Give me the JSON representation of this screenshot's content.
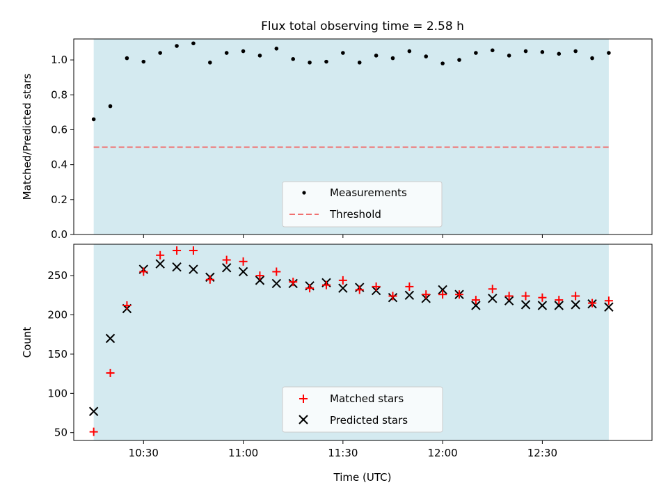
{
  "figure": {
    "title": "Flux total observing time = 2.58 h"
  },
  "chart_data": [
    {
      "type": "scatter",
      "ylabel": "Matched/Predicted stars",
      "ylim": [
        0,
        1.12
      ],
      "yticks": [
        0.0,
        0.2,
        0.4,
        0.6,
        0.8,
        1.0
      ],
      "ytick_labels": [
        "0.0",
        "0.2",
        "0.4",
        "0.6",
        "0.8",
        "1.0"
      ],
      "xlim": [
        "10:09",
        "13:03"
      ],
      "shaded_span": [
        "10:15",
        "12:50"
      ],
      "shade_color": "#d4eaf0",
      "grid": false,
      "legend_position": "lower center",
      "threshold": {
        "name": "Threshold",
        "value": 0.5,
        "color": "#f07070",
        "style": "dashed"
      },
      "series": [
        {
          "name": "Measurements",
          "marker": "dot",
          "color": "#000000",
          "x": [
            "10:15",
            "10:20",
            "10:25",
            "10:30",
            "10:35",
            "10:40",
            "10:45",
            "10:50",
            "10:55",
            "11:00",
            "11:05",
            "11:10",
            "11:15",
            "11:20",
            "11:25",
            "11:30",
            "11:35",
            "11:40",
            "11:45",
            "11:50",
            "11:55",
            "12:00",
            "12:05",
            "12:10",
            "12:15",
            "12:20",
            "12:25",
            "12:30",
            "12:35",
            "12:40",
            "12:45",
            "12:50"
          ],
          "y": [
            0.66,
            0.735,
            1.01,
            0.99,
            1.04,
            1.08,
            1.095,
            0.985,
            1.04,
            1.05,
            1.025,
            1.065,
            1.005,
            0.985,
            0.99,
            1.04,
            0.985,
            1.025,
            1.01,
            1.05,
            1.02,
            0.98,
            1.0,
            1.04,
            1.055,
            1.025,
            1.05,
            1.045,
            1.035,
            1.05,
            1.01,
            1.04
          ]
        }
      ]
    },
    {
      "type": "scatter",
      "xlabel": "Time (UTC)",
      "ylabel": "Count",
      "ylim": [
        40,
        290
      ],
      "yticks": [
        50,
        100,
        150,
        200,
        250
      ],
      "ytick_labels": [
        "50",
        "100",
        "150",
        "200",
        "250"
      ],
      "xticks": [
        "10:30",
        "11:00",
        "11:30",
        "12:00",
        "12:30"
      ],
      "xtick_labels": [
        "10:30",
        "11:00",
        "11:30",
        "12:00",
        "12:30"
      ],
      "xlim": [
        "10:09",
        "13:03"
      ],
      "shaded_span": [
        "10:15",
        "12:50"
      ],
      "shade_color": "#d4eaf0",
      "grid": false,
      "legend_position": "lower center",
      "x": [
        "10:15",
        "10:20",
        "10:25",
        "10:30",
        "10:35",
        "10:40",
        "10:45",
        "10:50",
        "10:55",
        "11:00",
        "11:05",
        "11:10",
        "11:15",
        "11:20",
        "11:25",
        "11:30",
        "11:35",
        "11:40",
        "11:45",
        "11:50",
        "11:55",
        "12:00",
        "12:05",
        "12:10",
        "12:15",
        "12:20",
        "12:25",
        "12:30",
        "12:35",
        "12:40",
        "12:45",
        "12:50"
      ],
      "series": [
        {
          "name": "Matched stars",
          "marker": "plus",
          "color": "#ff0000",
          "values": [
            51,
            126,
            212,
            255,
            276,
            282,
            282,
            245,
            270,
            268,
            250,
            255,
            242,
            234,
            238,
            244,
            232,
            236,
            224,
            236,
            226,
            226,
            226,
            219,
            233,
            224,
            224,
            222,
            219,
            224,
            215,
            218
          ]
        },
        {
          "name": "Predicted stars",
          "marker": "x",
          "color": "#000000",
          "values": [
            77,
            170,
            208,
            258,
            265,
            261,
            258,
            248,
            260,
            255,
            244,
            240,
            240,
            237,
            241,
            234,
            235,
            231,
            222,
            225,
            221,
            232,
            226,
            212,
            221,
            218,
            213,
            212,
            212,
            213,
            214,
            210
          ]
        }
      ]
    }
  ]
}
